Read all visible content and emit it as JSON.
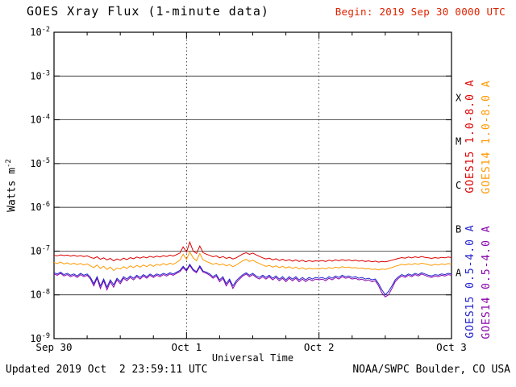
{
  "header": {
    "title": "GOES Xray Flux (1-minute data)",
    "begin_label": "Begin: 2019 Sep 30 0000 UTC"
  },
  "axes": {
    "x_label": "Universal Time",
    "y_label_base": "Watts m",
    "y_label_exp": "-2"
  },
  "footer": {
    "updated": "Updated 2019 Oct  2 23:59:11 UTC",
    "credit": "NOAA/SWPC Boulder, CO USA"
  },
  "colors": {
    "begin_text": "#dd2200",
    "axis": "#000000",
    "background": "#ffffff"
  },
  "chart_data": {
    "type": "line",
    "title": "GOES Xray Flux (1-minute data)",
    "xlabel": "Universal Time",
    "ylabel": "Watts m^-2",
    "x_unit": "days since 2019 Sep 30 0000 UTC",
    "x_range": [
      0,
      3
    ],
    "x_ticks": [
      0,
      1,
      2,
      3
    ],
    "x_tick_labels": [
      "Sep 30",
      "Oct 1",
      "Oct 2",
      "Oct 3"
    ],
    "y_scale": "log",
    "y_exp_range": [
      -2,
      -9
    ],
    "y_ticks_exp": [
      -2,
      -3,
      -4,
      -5,
      -6,
      -7,
      -8,
      -9
    ],
    "grid": {
      "h_lines_exp": [
        -3,
        -4,
        -5,
        -6,
        -7,
        -8
      ],
      "v_dashed_days": [
        1,
        2
      ]
    },
    "flare_class_bands": [
      {
        "label": "X",
        "center_exp": -3.5
      },
      {
        "label": "M",
        "center_exp": -4.5
      },
      {
        "label": "C",
        "center_exp": -5.5
      },
      {
        "label": "B",
        "center_exp": -6.5
      },
      {
        "label": "A",
        "center_exp": -7.5
      }
    ],
    "legend_position": "right-rotated",
    "value_scale": 1e-08,
    "x_step_days": 0.025,
    "series": [
      {
        "name": "GOES15 1.0-8.0 A",
        "color": "#dd0000",
        "values": [
          8.0,
          7.8,
          8.2,
          7.9,
          8.1,
          7.7,
          8.0,
          7.6,
          7.9,
          7.5,
          7.8,
          7.2,
          6.8,
          7.4,
          6.5,
          7.0,
          6.3,
          6.8,
          6.0,
          6.6,
          6.2,
          6.9,
          6.4,
          7.1,
          6.7,
          7.3,
          6.9,
          7.4,
          7.0,
          7.6,
          7.2,
          7.7,
          7.3,
          7.9,
          7.5,
          8.1,
          7.7,
          8.3,
          9.0,
          12.5,
          9.5,
          16.0,
          10.0,
          8.8,
          13.0,
          9.2,
          8.5,
          8.0,
          7.4,
          7.8,
          7.0,
          7.5,
          6.8,
          7.2,
          6.6,
          7.0,
          7.8,
          8.6,
          9.2,
          8.4,
          9.0,
          8.2,
          7.6,
          7.0,
          6.6,
          6.9,
          6.3,
          6.7,
          6.1,
          6.5,
          6.0,
          6.4,
          5.9,
          6.3,
          5.8,
          6.2,
          5.7,
          6.1,
          5.8,
          6.0,
          5.9,
          6.1,
          5.8,
          6.2,
          5.9,
          6.3,
          6.0,
          6.4,
          6.1,
          6.3,
          6.0,
          6.2,
          5.9,
          6.1,
          5.8,
          6.0,
          5.7,
          5.9,
          5.6,
          5.8,
          5.7,
          5.9,
          6.2,
          6.5,
          6.8,
          7.1,
          6.9,
          7.3,
          7.0,
          7.4,
          7.1,
          7.5,
          7.2,
          7.0,
          6.8,
          7.1,
          6.9,
          7.2,
          7.0,
          7.3,
          7.1
        ]
      },
      {
        "name": "GOES14 1.0-8.0 A",
        "color": "#ff9900",
        "values": [
          5.5,
          5.2,
          5.6,
          5.1,
          5.4,
          5.0,
          5.3,
          4.9,
          5.2,
          4.8,
          5.1,
          4.6,
          4.2,
          4.8,
          4.0,
          4.5,
          3.8,
          4.3,
          3.6,
          4.1,
          3.9,
          4.4,
          4.0,
          4.6,
          4.2,
          4.7,
          4.3,
          4.8,
          4.4,
          4.9,
          4.5,
          5.0,
          4.7,
          5.2,
          4.8,
          5.3,
          5.0,
          5.5,
          6.2,
          8.5,
          6.5,
          9.5,
          7.0,
          6.0,
          8.8,
          6.3,
          5.8,
          5.4,
          5.0,
          5.3,
          4.8,
          5.1,
          4.6,
          4.9,
          4.4,
          4.8,
          5.4,
          6.0,
          6.5,
          5.8,
          6.2,
          5.6,
          5.2,
          4.8,
          4.5,
          4.7,
          4.3,
          4.6,
          4.2,
          4.5,
          4.1,
          4.4,
          4.0,
          4.3,
          3.9,
          4.2,
          3.8,
          4.1,
          3.9,
          4.0,
          3.9,
          4.1,
          3.9,
          4.2,
          4.0,
          4.3,
          4.1,
          4.4,
          4.2,
          4.3,
          4.1,
          4.2,
          4.0,
          4.1,
          3.9,
          4.0,
          3.8,
          3.9,
          3.7,
          3.9,
          3.8,
          4.0,
          4.2,
          4.5,
          4.7,
          5.0,
          4.8,
          5.1,
          4.9,
          5.2,
          5.0,
          5.3,
          5.1,
          4.9,
          4.7,
          5.0,
          4.8,
          5.1,
          4.9,
          5.2,
          5.0
        ]
      },
      {
        "name": "GOES15 0.5-4.0 A",
        "color": "#2222cc",
        "values": [
          3.2,
          3.0,
          3.3,
          2.9,
          3.1,
          2.8,
          3.0,
          2.7,
          3.1,
          2.8,
          3.0,
          2.5,
          1.8,
          2.6,
          1.6,
          2.3,
          1.5,
          2.2,
          1.7,
          2.4,
          2.0,
          2.6,
          2.3,
          2.7,
          2.4,
          2.8,
          2.5,
          2.9,
          2.6,
          3.0,
          2.7,
          3.0,
          2.8,
          3.1,
          2.9,
          3.2,
          3.0,
          3.3,
          3.6,
          4.5,
          3.7,
          5.0,
          3.8,
          3.4,
          4.6,
          3.5,
          3.3,
          3.0,
          2.6,
          2.9,
          2.2,
          2.6,
          1.8,
          2.3,
          1.6,
          2.1,
          2.5,
          2.9,
          3.2,
          2.8,
          3.1,
          2.7,
          2.5,
          2.8,
          2.5,
          2.8,
          2.4,
          2.7,
          2.3,
          2.6,
          2.2,
          2.6,
          2.3,
          2.6,
          2.2,
          2.5,
          2.2,
          2.5,
          2.3,
          2.5,
          2.4,
          2.5,
          2.3,
          2.6,
          2.4,
          2.7,
          2.5,
          2.8,
          2.6,
          2.7,
          2.5,
          2.6,
          2.4,
          2.5,
          2.3,
          2.4,
          2.2,
          2.3,
          1.8,
          1.3,
          1.0,
          1.2,
          1.6,
          2.2,
          2.6,
          2.9,
          2.7,
          3.0,
          2.8,
          3.1,
          2.9,
          3.2,
          3.0,
          2.8,
          2.7,
          2.9,
          2.8,
          3.0,
          2.9,
          3.1,
          3.0
        ]
      },
      {
        "name": "GOES14 0.5-4.0 A",
        "color": "#8800aa",
        "values": [
          3.0,
          2.8,
          3.1,
          2.7,
          2.9,
          2.6,
          2.8,
          2.5,
          2.9,
          2.6,
          2.8,
          2.3,
          1.6,
          2.4,
          1.4,
          2.1,
          1.3,
          2.0,
          1.5,
          2.2,
          1.8,
          2.4,
          2.1,
          2.5,
          2.2,
          2.6,
          2.3,
          2.7,
          2.4,
          2.8,
          2.5,
          2.8,
          2.6,
          2.9,
          2.7,
          3.0,
          2.8,
          3.1,
          3.4,
          4.2,
          3.5,
          4.7,
          3.6,
          3.2,
          4.3,
          3.3,
          3.1,
          2.8,
          2.4,
          2.7,
          2.0,
          2.4,
          1.6,
          2.1,
          1.4,
          1.9,
          2.3,
          2.7,
          3.0,
          2.6,
          2.9,
          2.5,
          2.3,
          2.6,
          2.3,
          2.6,
          2.2,
          2.5,
          2.1,
          2.4,
          2.0,
          2.4,
          2.1,
          2.4,
          2.0,
          2.3,
          2.0,
          2.3,
          2.1,
          2.3,
          2.2,
          2.3,
          2.1,
          2.4,
          2.2,
          2.5,
          2.3,
          2.6,
          2.4,
          2.5,
          2.3,
          2.4,
          2.2,
          2.3,
          2.1,
          2.2,
          2.0,
          2.1,
          1.6,
          1.1,
          0.9,
          1.0,
          1.4,
          2.0,
          2.4,
          2.7,
          2.5,
          2.8,
          2.6,
          2.9,
          2.7,
          3.0,
          2.8,
          2.6,
          2.5,
          2.7,
          2.6,
          2.8,
          2.7,
          2.9,
          2.8
        ]
      }
    ]
  }
}
